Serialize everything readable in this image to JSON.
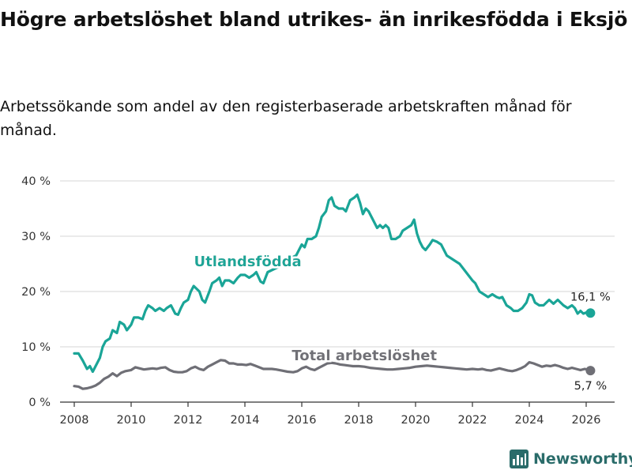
{
  "title": "Högre arbetslöshet bland utrikes- än inrikesfödda i Eksjö",
  "subtitle": "Arbetssökande som andel av den registerbaserade arbetskraften månad för månad.",
  "brand": "Newsworthy",
  "colors": {
    "foreign": "#1aa597",
    "total": "#6f6f76",
    "brandText": "#2a6c6a"
  },
  "chart_data": {
    "type": "line",
    "title": "Högre arbetslöshet bland utrikes- än inrikesfödda i Eksjö",
    "xlabel": "",
    "ylabel": "",
    "xlim": [
      2007.5,
      2027.0
    ],
    "ylim": [
      0,
      40
    ],
    "grid": true,
    "y_ticks": [
      0,
      10,
      20,
      30,
      40
    ],
    "y_tick_labels": [
      "0 %",
      "10 %",
      "20 %",
      "30 %",
      "40 %"
    ],
    "x_ticks": [
      2008,
      2010,
      2012,
      2014,
      2016,
      2018,
      2020,
      2022,
      2024,
      2026
    ],
    "x_tick_labels": [
      "2008",
      "2010",
      "2012",
      "2014",
      "2016",
      "2018",
      "2020",
      "2022",
      "2024",
      "2026"
    ],
    "series": [
      {
        "name": "Utlandsfödda",
        "end_label": "16,1 %",
        "points": [
          [
            2008.0,
            8.8
          ],
          [
            2008.15,
            8.8
          ],
          [
            2008.3,
            7.5
          ],
          [
            2008.45,
            6.0
          ],
          [
            2008.55,
            6.5
          ],
          [
            2008.65,
            5.5
          ],
          [
            2008.8,
            7.0
          ],
          [
            2008.9,
            8.0
          ],
          [
            2009.0,
            10.0
          ],
          [
            2009.1,
            11.0
          ],
          [
            2009.25,
            11.5
          ],
          [
            2009.35,
            13.0
          ],
          [
            2009.5,
            12.5
          ],
          [
            2009.6,
            14.5
          ],
          [
            2009.75,
            14.0
          ],
          [
            2009.85,
            13.0
          ],
          [
            2010.0,
            14.0
          ],
          [
            2010.1,
            15.3
          ],
          [
            2010.25,
            15.3
          ],
          [
            2010.4,
            15.0
          ],
          [
            2010.5,
            16.5
          ],
          [
            2010.6,
            17.5
          ],
          [
            2010.75,
            17.0
          ],
          [
            2010.85,
            16.5
          ],
          [
            2011.0,
            17.0
          ],
          [
            2011.15,
            16.5
          ],
          [
            2011.25,
            17.0
          ],
          [
            2011.4,
            17.5
          ],
          [
            2011.55,
            16.0
          ],
          [
            2011.65,
            15.8
          ],
          [
            2011.75,
            17.0
          ],
          [
            2011.85,
            18.0
          ],
          [
            2012.0,
            18.5
          ],
          [
            2012.1,
            20.0
          ],
          [
            2012.2,
            21.0
          ],
          [
            2012.3,
            20.5
          ],
          [
            2012.4,
            20.0
          ],
          [
            2012.5,
            18.5
          ],
          [
            2012.6,
            18.0
          ],
          [
            2012.75,
            20.0
          ],
          [
            2012.85,
            21.5
          ],
          [
            2013.0,
            22.0
          ],
          [
            2013.1,
            22.5
          ],
          [
            2013.2,
            21.0
          ],
          [
            2013.3,
            22.0
          ],
          [
            2013.45,
            22.0
          ],
          [
            2013.6,
            21.5
          ],
          [
            2013.75,
            22.5
          ],
          [
            2013.85,
            23.0
          ],
          [
            2014.0,
            23.0
          ],
          [
            2014.15,
            22.5
          ],
          [
            2014.3,
            23.0
          ],
          [
            2014.4,
            23.5
          ],
          [
            2014.55,
            21.8
          ],
          [
            2014.65,
            21.5
          ],
          [
            2014.8,
            23.5
          ],
          [
            2015.0,
            24.0
          ],
          [
            2015.2,
            24.5
          ],
          [
            2015.4,
            25.0
          ],
          [
            2015.6,
            26.0
          ],
          [
            2015.8,
            26.5
          ],
          [
            2015.9,
            27.5
          ],
          [
            2016.0,
            28.5
          ],
          [
            2016.1,
            28.0
          ],
          [
            2016.2,
            29.5
          ],
          [
            2016.35,
            29.5
          ],
          [
            2016.5,
            30.0
          ],
          [
            2016.6,
            31.5
          ],
          [
            2016.7,
            33.5
          ],
          [
            2016.85,
            34.5
          ],
          [
            2016.95,
            36.5
          ],
          [
            2017.05,
            37.0
          ],
          [
            2017.15,
            35.5
          ],
          [
            2017.3,
            35.0
          ],
          [
            2017.45,
            35.0
          ],
          [
            2017.55,
            34.5
          ],
          [
            2017.7,
            36.5
          ],
          [
            2017.85,
            37.0
          ],
          [
            2017.95,
            37.5
          ],
          [
            2018.05,
            36.0
          ],
          [
            2018.15,
            34.0
          ],
          [
            2018.25,
            35.0
          ],
          [
            2018.35,
            34.5
          ],
          [
            2018.45,
            33.5
          ],
          [
            2018.55,
            32.5
          ],
          [
            2018.65,
            31.5
          ],
          [
            2018.75,
            32.0
          ],
          [
            2018.85,
            31.5
          ],
          [
            2018.95,
            32.0
          ],
          [
            2019.05,
            31.5
          ],
          [
            2019.15,
            29.5
          ],
          [
            2019.3,
            29.5
          ],
          [
            2019.45,
            30.0
          ],
          [
            2019.55,
            31.0
          ],
          [
            2019.7,
            31.5
          ],
          [
            2019.85,
            32.0
          ],
          [
            2019.95,
            33.0
          ],
          [
            2020.05,
            30.5
          ],
          [
            2020.15,
            29.0
          ],
          [
            2020.25,
            28.0
          ],
          [
            2020.35,
            27.5
          ],
          [
            2020.5,
            28.5
          ],
          [
            2020.6,
            29.3
          ],
          [
            2020.75,
            29.0
          ],
          [
            2020.9,
            28.5
          ],
          [
            2021.0,
            27.5
          ],
          [
            2021.1,
            26.5
          ],
          [
            2021.25,
            26.0
          ],
          [
            2021.4,
            25.5
          ],
          [
            2021.55,
            25.0
          ],
          [
            2021.7,
            24.0
          ],
          [
            2021.85,
            23.0
          ],
          [
            2022.0,
            22.0
          ],
          [
            2022.1,
            21.5
          ],
          [
            2022.25,
            20.0
          ],
          [
            2022.4,
            19.5
          ],
          [
            2022.55,
            19.0
          ],
          [
            2022.7,
            19.5
          ],
          [
            2022.85,
            19.0
          ],
          [
            2022.95,
            18.8
          ],
          [
            2023.05,
            19.0
          ],
          [
            2023.2,
            17.5
          ],
          [
            2023.35,
            17.0
          ],
          [
            2023.45,
            16.5
          ],
          [
            2023.6,
            16.5
          ],
          [
            2023.75,
            17.0
          ],
          [
            2023.9,
            18.0
          ],
          [
            2024.0,
            19.5
          ],
          [
            2024.1,
            19.3
          ],
          [
            2024.2,
            18.0
          ],
          [
            2024.35,
            17.5
          ],
          [
            2024.5,
            17.5
          ],
          [
            2024.6,
            18.0
          ],
          [
            2024.7,
            18.5
          ],
          [
            2024.85,
            17.8
          ],
          [
            2025.0,
            18.5
          ],
          [
            2025.1,
            18.0
          ],
          [
            2025.2,
            17.5
          ],
          [
            2025.35,
            17.0
          ],
          [
            2025.5,
            17.5
          ],
          [
            2025.6,
            17.0
          ],
          [
            2025.7,
            16.0
          ],
          [
            2025.8,
            16.5
          ],
          [
            2025.9,
            16.0
          ],
          [
            2026.0,
            16.2
          ],
          [
            2026.15,
            16.1
          ]
        ]
      },
      {
        "name": "Total arbetslöshet",
        "end_label": "5,7 %",
        "points": [
          [
            2008.0,
            2.9
          ],
          [
            2008.15,
            2.8
          ],
          [
            2008.3,
            2.4
          ],
          [
            2008.45,
            2.5
          ],
          [
            2008.6,
            2.7
          ],
          [
            2008.75,
            3.0
          ],
          [
            2008.9,
            3.5
          ],
          [
            2009.05,
            4.2
          ],
          [
            2009.2,
            4.6
          ],
          [
            2009.35,
            5.2
          ],
          [
            2009.5,
            4.7
          ],
          [
            2009.65,
            5.3
          ],
          [
            2009.8,
            5.6
          ],
          [
            2010.0,
            5.8
          ],
          [
            2010.15,
            6.3
          ],
          [
            2010.3,
            6.1
          ],
          [
            2010.45,
            5.9
          ],
          [
            2010.6,
            6.0
          ],
          [
            2010.75,
            6.1
          ],
          [
            2010.9,
            6.0
          ],
          [
            2011.05,
            6.2
          ],
          [
            2011.2,
            6.3
          ],
          [
            2011.35,
            5.8
          ],
          [
            2011.5,
            5.5
          ],
          [
            2011.65,
            5.4
          ],
          [
            2011.8,
            5.4
          ],
          [
            2011.95,
            5.6
          ],
          [
            2012.1,
            6.1
          ],
          [
            2012.25,
            6.4
          ],
          [
            2012.4,
            6.0
          ],
          [
            2012.55,
            5.8
          ],
          [
            2012.7,
            6.4
          ],
          [
            2012.85,
            6.8
          ],
          [
            2013.0,
            7.2
          ],
          [
            2013.15,
            7.6
          ],
          [
            2013.3,
            7.5
          ],
          [
            2013.45,
            7.0
          ],
          [
            2013.6,
            7.0
          ],
          [
            2013.75,
            6.8
          ],
          [
            2013.9,
            6.8
          ],
          [
            2014.05,
            6.7
          ],
          [
            2014.2,
            6.9
          ],
          [
            2014.35,
            6.6
          ],
          [
            2014.5,
            6.3
          ],
          [
            2014.65,
            6.0
          ],
          [
            2014.8,
            6.0
          ],
          [
            2014.95,
            6.0
          ],
          [
            2015.1,
            5.9
          ],
          [
            2015.3,
            5.7
          ],
          [
            2015.5,
            5.5
          ],
          [
            2015.7,
            5.4
          ],
          [
            2015.85,
            5.6
          ],
          [
            2016.0,
            6.1
          ],
          [
            2016.15,
            6.4
          ],
          [
            2016.3,
            6.0
          ],
          [
            2016.45,
            5.8
          ],
          [
            2016.6,
            6.2
          ],
          [
            2016.75,
            6.6
          ],
          [
            2016.9,
            7.0
          ],
          [
            2017.05,
            7.1
          ],
          [
            2017.2,
            7.0
          ],
          [
            2017.35,
            6.8
          ],
          [
            2017.5,
            6.7
          ],
          [
            2017.65,
            6.6
          ],
          [
            2017.8,
            6.5
          ],
          [
            2018.0,
            6.5
          ],
          [
            2018.2,
            6.4
          ],
          [
            2018.4,
            6.2
          ],
          [
            2018.6,
            6.1
          ],
          [
            2018.8,
            6.0
          ],
          [
            2019.0,
            5.9
          ],
          [
            2019.2,
            5.9
          ],
          [
            2019.4,
            6.0
          ],
          [
            2019.6,
            6.1
          ],
          [
            2019.8,
            6.2
          ],
          [
            2020.0,
            6.4
          ],
          [
            2020.2,
            6.5
          ],
          [
            2020.4,
            6.6
          ],
          [
            2020.6,
            6.5
          ],
          [
            2020.8,
            6.4
          ],
          [
            2021.0,
            6.3
          ],
          [
            2021.2,
            6.2
          ],
          [
            2021.4,
            6.1
          ],
          [
            2021.6,
            6.0
          ],
          [
            2021.8,
            5.9
          ],
          [
            2022.0,
            6.0
          ],
          [
            2022.2,
            5.9
          ],
          [
            2022.35,
            6.0
          ],
          [
            2022.5,
            5.8
          ],
          [
            2022.65,
            5.7
          ],
          [
            2022.8,
            5.9
          ],
          [
            2022.95,
            6.1
          ],
          [
            2023.1,
            5.9
          ],
          [
            2023.25,
            5.7
          ],
          [
            2023.4,
            5.6
          ],
          [
            2023.55,
            5.8
          ],
          [
            2023.7,
            6.1
          ],
          [
            2023.85,
            6.5
          ],
          [
            2024.0,
            7.2
          ],
          [
            2024.15,
            7.0
          ],
          [
            2024.3,
            6.7
          ],
          [
            2024.45,
            6.4
          ],
          [
            2024.6,
            6.6
          ],
          [
            2024.75,
            6.5
          ],
          [
            2024.9,
            6.7
          ],
          [
            2025.05,
            6.5
          ],
          [
            2025.2,
            6.2
          ],
          [
            2025.35,
            6.0
          ],
          [
            2025.5,
            6.2
          ],
          [
            2025.65,
            6.0
          ],
          [
            2025.8,
            5.8
          ],
          [
            2025.95,
            6.0
          ],
          [
            2026.15,
            5.7
          ]
        ]
      }
    ]
  }
}
